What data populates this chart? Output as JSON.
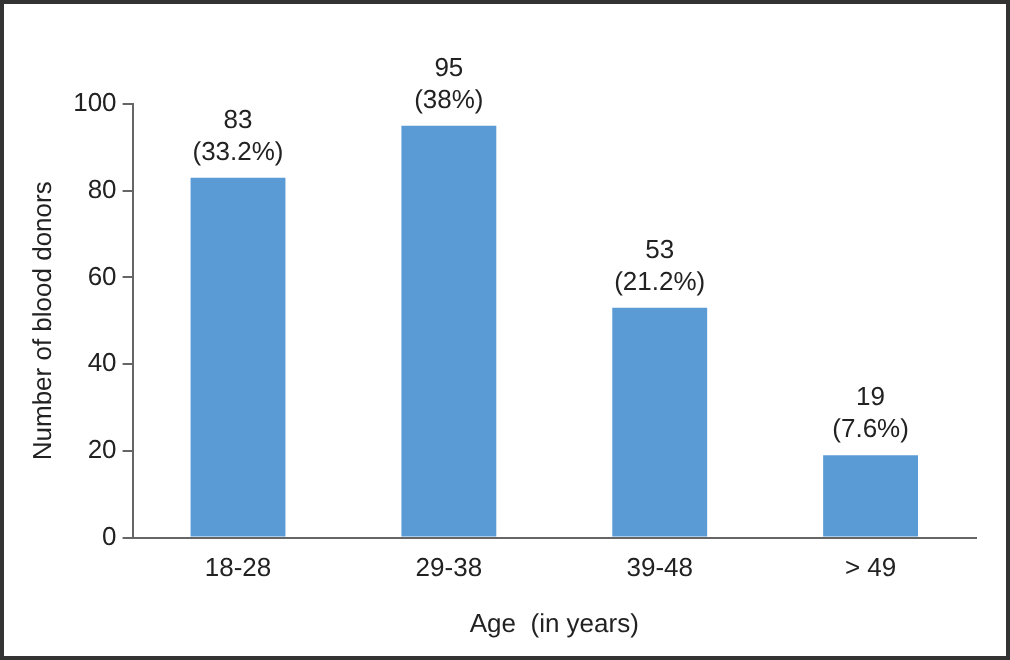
{
  "chart_data": {
    "type": "bar",
    "xlabel": "Age  (in years)",
    "ylabel": "Number of blood donors",
    "categories": [
      "18-28",
      "29-38",
      "39-48",
      "> 49"
    ],
    "values": [
      83,
      95,
      53,
      19
    ],
    "value_labels": [
      "83\n(33.2%)",
      "95\n(38%)",
      "53\n(21.2%)",
      "19\n(7.6%)"
    ],
    "color": "#5b9bd5",
    "ylim": [
      0,
      100
    ],
    "yticks": [
      0,
      20,
      40,
      60,
      80,
      100
    ],
    "grid": false,
    "legend": false
  }
}
